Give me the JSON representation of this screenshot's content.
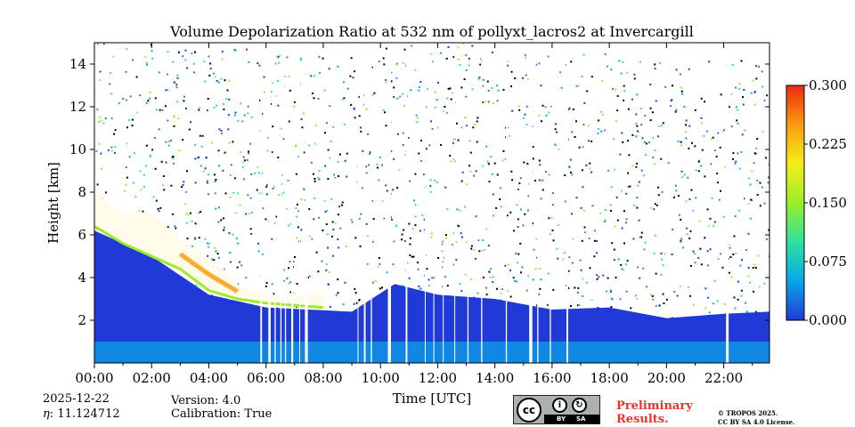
{
  "chart_data": {
    "type": "heatmap",
    "title": "Volume Depolarization Ratio at 532 nm of pollyxt_lacros2 at Invercargill",
    "xlabel": "Time [UTC]",
    "ylabel": "Height [km]",
    "xlim": [
      0,
      23.6
    ],
    "ylim": [
      0,
      15
    ],
    "x_ticks": [
      {
        "value": 0,
        "label": "00:00"
      },
      {
        "value": 2,
        "label": "02:00"
      },
      {
        "value": 4,
        "label": "04:00"
      },
      {
        "value": 6,
        "label": "06:00"
      },
      {
        "value": 8,
        "label": "08:00"
      },
      {
        "value": 10,
        "label": "10:00"
      },
      {
        "value": 12,
        "label": "12:00"
      },
      {
        "value": 14,
        "label": "14:00"
      },
      {
        "value": 16,
        "label": "16:00"
      },
      {
        "value": 18,
        "label": "18:00"
      },
      {
        "value": 20,
        "label": "20:00"
      },
      {
        "value": 22,
        "label": "22:00"
      }
    ],
    "y_ticks": [
      {
        "value": 2,
        "label": "2"
      },
      {
        "value": 4,
        "label": "4"
      },
      {
        "value": 6,
        "label": "6"
      },
      {
        "value": 8,
        "label": "8"
      },
      {
        "value": 10,
        "label": "10"
      },
      {
        "value": 12,
        "label": "12"
      },
      {
        "value": 14,
        "label": "14"
      }
    ],
    "colorbar": {
      "min": 0.0,
      "max": 0.3,
      "ticks": [
        {
          "value": 0.0,
          "label": "0.000"
        },
        {
          "value": 0.075,
          "label": "0.075"
        },
        {
          "value": 0.15,
          "label": "0.150"
        },
        {
          "value": 0.225,
          "label": "0.225"
        },
        {
          "value": 0.3,
          "label": "0.300"
        }
      ],
      "colors": [
        "#1f3ad6",
        "#0aa8e8",
        "#2ee0a0",
        "#9bed2a",
        "#f4ee1a",
        "#fb9b12",
        "#ea2b10"
      ]
    },
    "cloud_layer_km": [
      {
        "t": 0,
        "top": 8.0,
        "base": 6.4
      },
      {
        "t": 1.0,
        "top": 7.0,
        "base": 5.6
      },
      {
        "t": 2.0,
        "top": 7.0,
        "base": 5.0
      },
      {
        "t": 3.0,
        "top": 5.8,
        "base": 4.4
      },
      {
        "t": 4.0,
        "top": 4.9,
        "base": 3.4
      },
      {
        "t": 5.0,
        "top": 3.7,
        "base": 3.0
      },
      {
        "t": 6.0,
        "top": 3.2,
        "base": 2.8
      },
      {
        "t": 7.0,
        "top": 3.1,
        "base": 2.7
      },
      {
        "t": 8.0,
        "top": 3.3,
        "base": 2.6
      }
    ],
    "boundary_layer_top_km": [
      {
        "t": 0,
        "h": 6.2
      },
      {
        "t": 2.0,
        "h": 5.0
      },
      {
        "t": 4.0,
        "h": 3.2
      },
      {
        "t": 6.0,
        "h": 2.6
      },
      {
        "t": 9.0,
        "h": 2.4
      },
      {
        "t": 10.5,
        "h": 3.7
      },
      {
        "t": 12.0,
        "h": 3.2
      },
      {
        "t": 14.0,
        "h": 3.0
      },
      {
        "t": 16.0,
        "h": 2.5
      },
      {
        "t": 18.0,
        "h": 2.6
      },
      {
        "t": 20.0,
        "h": 2.1
      },
      {
        "t": 22.0,
        "h": 2.3
      },
      {
        "t": 23.6,
        "h": 2.4
      }
    ],
    "data_gaps_hours": [
      [
        5.8,
        5.86
      ],
      [
        6.08,
        6.16
      ],
      [
        6.3,
        6.34
      ],
      [
        6.5,
        6.54
      ],
      [
        6.66,
        6.7
      ],
      [
        6.88,
        6.95
      ],
      [
        7.16,
        7.19
      ],
      [
        7.36,
        7.46
      ],
      [
        9.2,
        9.23
      ],
      [
        9.42,
        9.48
      ],
      [
        9.66,
        9.7
      ],
      [
        10.26,
        10.37
      ],
      [
        10.88,
        10.94
      ],
      [
        11.55,
        11.58
      ],
      [
        11.85,
        11.88
      ],
      [
        12.18,
        12.21
      ],
      [
        12.58,
        12.61
      ],
      [
        13.04,
        13.08
      ],
      [
        13.52,
        13.56
      ],
      [
        14.38,
        14.42
      ],
      [
        15.2,
        15.31
      ],
      [
        15.48,
        15.52
      ],
      [
        15.92,
        15.96
      ],
      [
        16.5,
        16.56
      ],
      [
        22.08,
        22.17
      ]
    ]
  },
  "footer": {
    "date": "2025-12-22",
    "eta": "11.124712",
    "eta_symbol": "η",
    "version": "Version: 4.0",
    "calibration": "Calibration: True",
    "license_badge": {
      "logo": "cc",
      "by": "BY",
      "sa": "SA"
    },
    "preliminary_line1": "Preliminary",
    "preliminary_line2": "Results.",
    "copyright_line1": "© TROPOS 2025.",
    "copyright_line2": "CC BY SA 4.0 License."
  }
}
